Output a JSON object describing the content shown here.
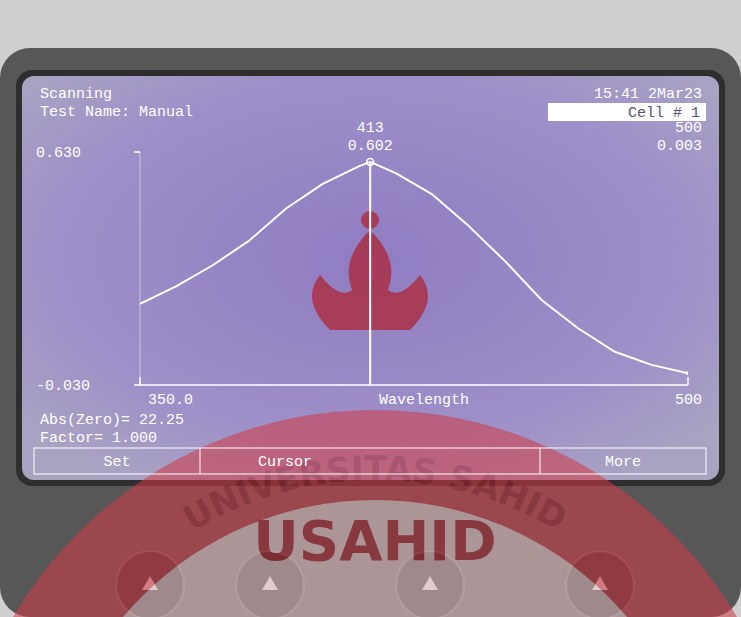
{
  "screen": {
    "status": "Scanning",
    "test_name": "Test Name: Manual",
    "time": "15:41 2Mar23",
    "cell": "Cell # 1",
    "zero": "Abs(Zero)= 22.25",
    "factor": "Factor= 1.000",
    "buttons": [
      "Set",
      "Cursor",
      "More"
    ]
  },
  "watermark": {
    "arc": "UNIVERSITAS SAHID",
    "center": "USAHID"
  },
  "chart_data": {
    "type": "line",
    "x_label": "Wavelength",
    "x": [
      350,
      360,
      370,
      380,
      390,
      400,
      410,
      413,
      420,
      430,
      440,
      450,
      460,
      470,
      480,
      490,
      500
    ],
    "values": [
      0.2,
      0.25,
      0.31,
      0.38,
      0.47,
      0.54,
      0.59,
      0.602,
      0.57,
      0.51,
      0.42,
      0.32,
      0.21,
      0.13,
      0.064,
      0.027,
      0.003
    ],
    "color": "#ffffff",
    "line_style": "solid",
    "xlim": [
      350,
      500
    ],
    "ylim": [
      -0.03,
      0.63
    ],
    "xticks": [
      {
        "value": 350,
        "label": "350.0"
      },
      500
    ],
    "yticks": [
      {
        "value": -0.03,
        "label": "-0.030"
      },
      {
        "value": 0.63,
        "label": "0.630"
      }
    ],
    "cursor": {
      "x": 413,
      "y": 0.602
    },
    "readout": {
      "x": 500,
      "y": 0.003
    }
  }
}
